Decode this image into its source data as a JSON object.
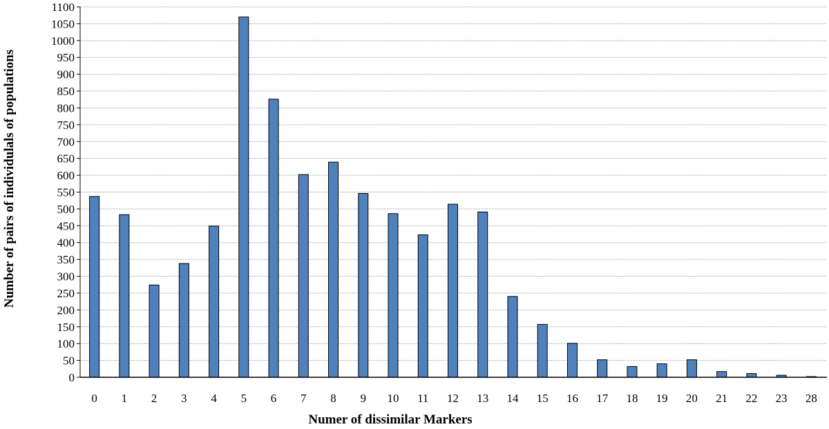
{
  "chart_data": {
    "type": "bar",
    "title": "",
    "xlabel": "Numer of dissimilar Markers",
    "ylabel": "Number of pairs of individulals of populations",
    "categories": [
      "0",
      "1",
      "2",
      "3",
      "4",
      "5",
      "6",
      "7",
      "8",
      "9",
      "10",
      "11",
      "12",
      "13",
      "14",
      "15",
      "16",
      "17",
      "18",
      "19",
      "20",
      "21",
      "22",
      "23",
      "28"
    ],
    "values": [
      537,
      483,
      274,
      338,
      449,
      1070,
      826,
      602,
      639,
      546,
      486,
      423,
      514,
      491,
      240,
      157,
      101,
      52,
      32,
      40,
      52,
      17,
      11,
      6,
      2
    ],
    "ylim": [
      0,
      1100
    ],
    "ytick_step": 50,
    "grid": true,
    "legend": "none",
    "bar_color": "#4F81BD"
  }
}
